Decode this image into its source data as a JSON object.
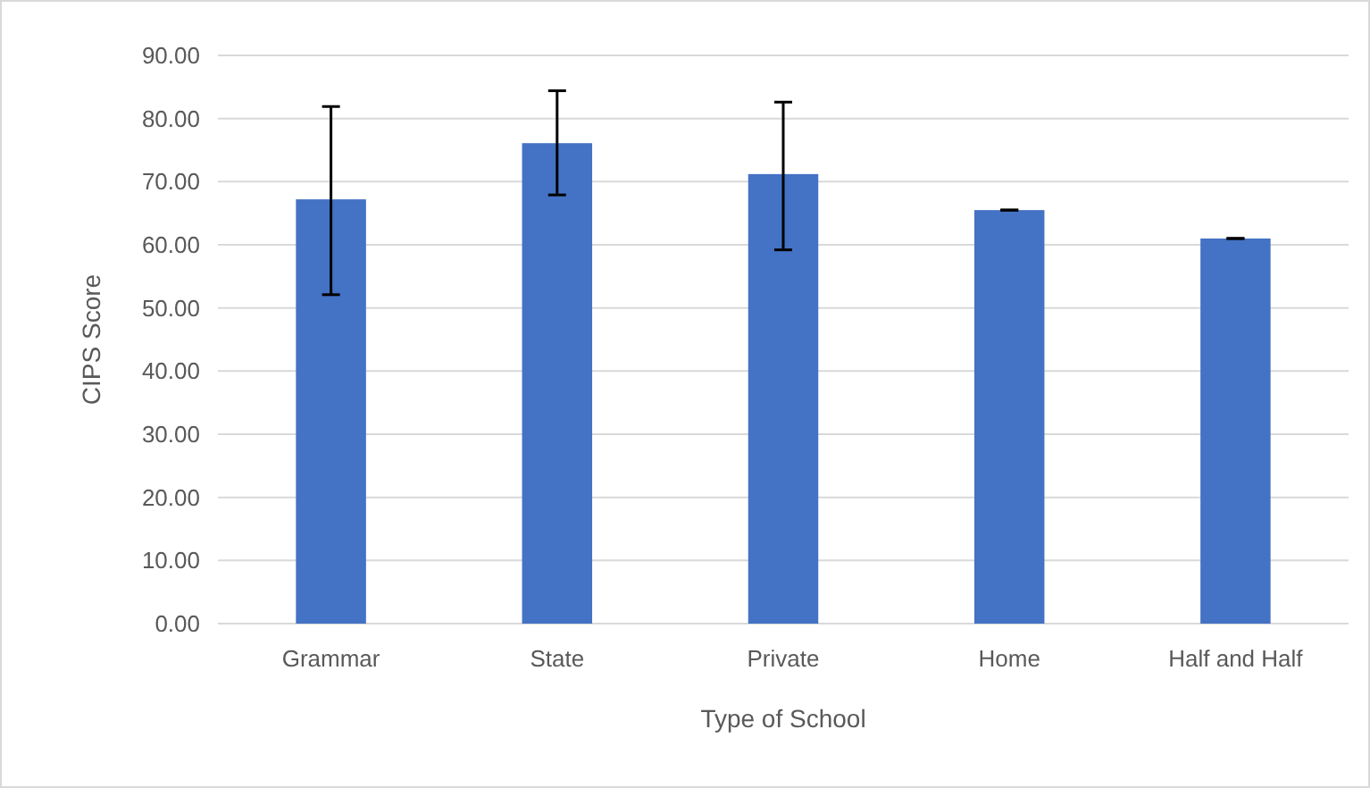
{
  "chart_data": {
    "type": "bar",
    "xlabel": "Type of School",
    "ylabel": "CIPS Score",
    "categories": [
      "Grammar",
      "State",
      "Private",
      "Home",
      "Half and Half"
    ],
    "values": [
      67.2,
      76.1,
      71.2,
      65.5,
      61.0
    ],
    "errors": [
      [
        52.1,
        81.9
      ],
      [
        67.9,
        84.4
      ],
      [
        59.2,
        82.6
      ],
      0,
      0
    ],
    "color": "#4472c4",
    "ylim": [
      0,
      90
    ],
    "yticks": [
      {
        "value": 0,
        "label": "0.00"
      },
      {
        "value": 10,
        "label": "10.00"
      },
      {
        "value": 20,
        "label": "20.00"
      },
      {
        "value": 30,
        "label": "30.00"
      },
      {
        "value": 40,
        "label": "40.00"
      },
      {
        "value": 50,
        "label": "50.00"
      },
      {
        "value": 60,
        "label": "60.00"
      },
      {
        "value": 70,
        "label": "70.00"
      },
      {
        "value": 80,
        "label": "80.00"
      },
      {
        "value": 90,
        "label": "90.00"
      }
    ],
    "grid": "y"
  }
}
